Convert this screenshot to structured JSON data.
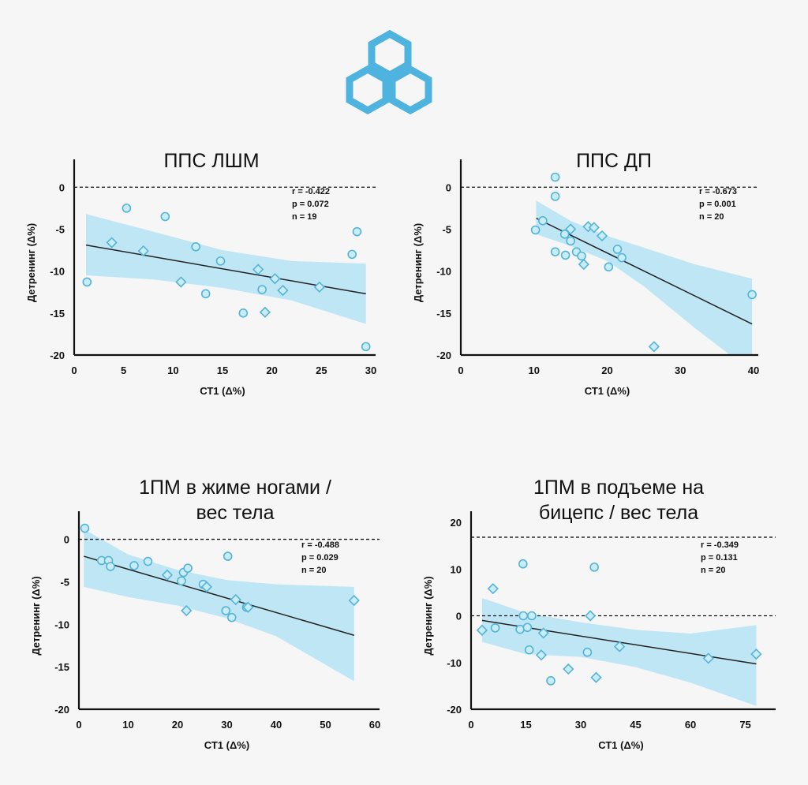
{
  "logo": {
    "icon": "hexagon-logo-icon",
    "color": "#4fb3e0"
  },
  "colors": {
    "band": "#bfe6f4",
    "marker_fill": "#c8ecf8",
    "marker_stroke": "#54b4d6",
    "line": "#222222"
  },
  "chart_data": [
    {
      "type": "scatter",
      "title": [
        "ППС ЛШМ"
      ],
      "xlabel": "СТ1 (Δ%)",
      "ylabel": "Детренинг (Δ%)",
      "xlim": [
        0,
        30
      ],
      "ylim": [
        -20,
        2
      ],
      "xticks": [
        0,
        5,
        10,
        15,
        20,
        25,
        30
      ],
      "yticks": [
        0,
        -5,
        -10,
        -15,
        -20
      ],
      "reference_line": 0,
      "stats": [
        "r = -0.422",
        "p = 0.072",
        "n = 19"
      ],
      "regression": [
        [
          1.2,
          -6.9
        ],
        [
          29.5,
          -12.7
        ]
      ],
      "band": {
        "upper": [
          [
            1.2,
            -3.2
          ],
          [
            8,
            -5.3
          ],
          [
            15,
            -7.5
          ],
          [
            22,
            -8.8
          ],
          [
            29.5,
            -9.1
          ]
        ],
        "lower": [
          [
            1.2,
            -10.5
          ],
          [
            8,
            -11.0
          ],
          [
            15,
            -12.0
          ],
          [
            22,
            -13.5
          ],
          [
            29.5,
            -16.3
          ]
        ]
      },
      "circles": [
        [
          1.3,
          -11.3
        ],
        [
          5.3,
          -2.5
        ],
        [
          9.2,
          -3.5
        ],
        [
          12.3,
          -7.1
        ],
        [
          13.3,
          -12.7
        ],
        [
          14.8,
          -8.8
        ],
        [
          17.1,
          -15.0
        ],
        [
          19.0,
          -12.2
        ],
        [
          28.1,
          -8.0
        ],
        [
          28.6,
          -5.3
        ],
        [
          29.5,
          -19.0
        ]
      ],
      "diamonds": [
        [
          3.8,
          -6.6
        ],
        [
          7.0,
          -7.6
        ],
        [
          10.8,
          -11.3
        ],
        [
          18.6,
          -9.8
        ],
        [
          19.3,
          -14.9
        ],
        [
          20.3,
          -10.9
        ],
        [
          21.1,
          -12.3
        ],
        [
          24.8,
          -11.9
        ]
      ]
    },
    {
      "type": "scatter",
      "title": [
        "ППС ДП"
      ],
      "xlabel": "СТ1 (Δ%)",
      "ylabel": "Детренинг (Δ%)",
      "xlim": [
        0,
        40
      ],
      "ylim": [
        -20,
        2
      ],
      "xticks": [
        0,
        10,
        20,
        30,
        40
      ],
      "yticks": [
        0,
        -5,
        -10,
        -15,
        -20
      ],
      "reference_line": 0,
      "stats": [
        "r = -0.673",
        "p = 0.001",
        "n = 20"
      ],
      "regression": [
        [
          10.3,
          -3.7
        ],
        [
          39.8,
          -16.3
        ]
      ],
      "band": {
        "upper": [
          [
            10.3,
            -1.6
          ],
          [
            15,
            -4.0
          ],
          [
            20,
            -5.8
          ],
          [
            25,
            -7.2
          ],
          [
            32,
            -9.2
          ],
          [
            39.8,
            -10.9
          ]
        ],
        "lower": [
          [
            10.3,
            -5.6
          ],
          [
            15,
            -7.0
          ],
          [
            20,
            -8.8
          ],
          [
            25,
            -11.8
          ],
          [
            32,
            -16.8
          ],
          [
            39.8,
            -22
          ]
        ]
      },
      "circles": [
        [
          12.9,
          1.2
        ],
        [
          12.9,
          -1.1
        ],
        [
          11.2,
          -4.0
        ],
        [
          10.2,
          -5.1
        ],
        [
          12.9,
          -7.7
        ],
        [
          14.2,
          -5.6
        ],
        [
          15.0,
          -6.4
        ],
        [
          14.3,
          -8.1
        ],
        [
          15.8,
          -7.7
        ],
        [
          16.5,
          -8.2
        ],
        [
          20.2,
          -9.5
        ],
        [
          21.4,
          -7.4
        ],
        [
          22.0,
          -8.4
        ],
        [
          39.8,
          -12.8
        ]
      ],
      "diamonds": [
        [
          15.0,
          -5.0
        ],
        [
          16.8,
          -9.2
        ],
        [
          17.4,
          -4.7
        ],
        [
          18.2,
          -4.8
        ],
        [
          19.3,
          -5.8
        ],
        [
          26.4,
          -19.0
        ]
      ]
    },
    {
      "type": "scatter",
      "title": [
        "1ПМ в жиме ногами /",
        "вес тела"
      ],
      "xlabel": "СТ1 (Δ%)",
      "ylabel": "Детренинг (Δ%)",
      "xlim": [
        0,
        60
      ],
      "ylim": [
        -20,
        2
      ],
      "xticks": [
        0,
        10,
        20,
        30,
        40,
        50,
        60
      ],
      "yticks": [
        0,
        -5,
        -10,
        -15,
        -20
      ],
      "reference_line": 0,
      "stats": [
        "r = -0.488",
        "p = 0.029",
        "n = 20"
      ],
      "regression": [
        [
          1.0,
          -2.0
        ],
        [
          55.8,
          -11.3
        ]
      ],
      "band": {
        "upper": [
          [
            1.0,
            1.2
          ],
          [
            10,
            -1.8
          ],
          [
            20,
            -3.6
          ],
          [
            30,
            -4.8
          ],
          [
            40,
            -5.3
          ],
          [
            55.8,
            -5.6
          ]
        ],
        "lower": [
          [
            1.0,
            -5.6
          ],
          [
            10,
            -6.8
          ],
          [
            20,
            -7.8
          ],
          [
            30,
            -9.3
          ],
          [
            40,
            -11.4
          ],
          [
            55.8,
            -16.7
          ]
        ]
      },
      "circles": [
        [
          1.2,
          1.3
        ],
        [
          4.6,
          -2.5
        ],
        [
          6.0,
          -2.5
        ],
        [
          6.4,
          -3.2
        ],
        [
          11.2,
          -3.1
        ],
        [
          14.0,
          -2.6
        ],
        [
          20.8,
          -4.9
        ],
        [
          21.2,
          -3.9
        ],
        [
          22.1,
          -3.4
        ],
        [
          25.2,
          -5.3
        ],
        [
          29.8,
          -8.4
        ],
        [
          30.2,
          -2.0
        ],
        [
          31.0,
          -9.2
        ],
        [
          34.0,
          -8.0
        ]
      ],
      "diamonds": [
        [
          17.9,
          -4.2
        ],
        [
          21.8,
          -8.4
        ],
        [
          25.9,
          -5.6
        ],
        [
          31.8,
          -7.1
        ],
        [
          34.3,
          -8.0
        ],
        [
          55.8,
          -7.2
        ]
      ]
    },
    {
      "type": "scatter",
      "title": [
        "1ПМ в подъеме на",
        "бицепс / вес тела"
      ],
      "xlabel": "СТ1 (Δ%)",
      "ylabel": "Детренинг (Δ%)",
      "xlim": [
        0,
        82
      ],
      "ylim": [
        -20,
        20
      ],
      "xticks": [
        0,
        15,
        30,
        45,
        60,
        75
      ],
      "yticks": [
        20,
        10,
        0,
        -10,
        -20
      ],
      "reference_line": 0,
      "upper_dashed": 16.8,
      "stats": [
        "r = -0.349",
        "p = 0.131",
        "n = 20"
      ],
      "regression": [
        [
          3.0,
          -1.0
        ],
        [
          78.0,
          -10.3
        ]
      ],
      "band": {
        "upper": [
          [
            3.0,
            3.8
          ],
          [
            15,
            0.6
          ],
          [
            30,
            -1.4
          ],
          [
            45,
            -3.0
          ],
          [
            60,
            -3.8
          ],
          [
            78.0,
            -2.0
          ]
        ],
        "lower": [
          [
            3.0,
            -5.6
          ],
          [
            15,
            -8.2
          ],
          [
            30,
            -8.8
          ],
          [
            45,
            -11.0
          ],
          [
            60,
            -14.3
          ],
          [
            78.0,
            -19.3
          ]
        ]
      },
      "circles": [
        [
          6.6,
          -2.6
        ],
        [
          13.4,
          -2.9
        ],
        [
          14.2,
          11.1
        ],
        [
          14.3,
          0.0
        ],
        [
          15.4,
          -2.5
        ],
        [
          15.9,
          -7.3
        ],
        [
          16.6,
          0.0
        ],
        [
          21.8,
          -13.9
        ],
        [
          31.8,
          -7.8
        ],
        [
          33.7,
          10.4
        ]
      ],
      "diamonds": [
        [
          3.0,
          -3.1
        ],
        [
          6.0,
          5.8
        ],
        [
          19.2,
          -8.4
        ],
        [
          19.8,
          -3.7
        ],
        [
          26.6,
          -11.4
        ],
        [
          32.6,
          0.0
        ],
        [
          34.2,
          -13.2
        ],
        [
          40.6,
          -6.6
        ],
        [
          64.9,
          -9.1
        ],
        [
          78.0,
          -8.2
        ]
      ]
    }
  ]
}
